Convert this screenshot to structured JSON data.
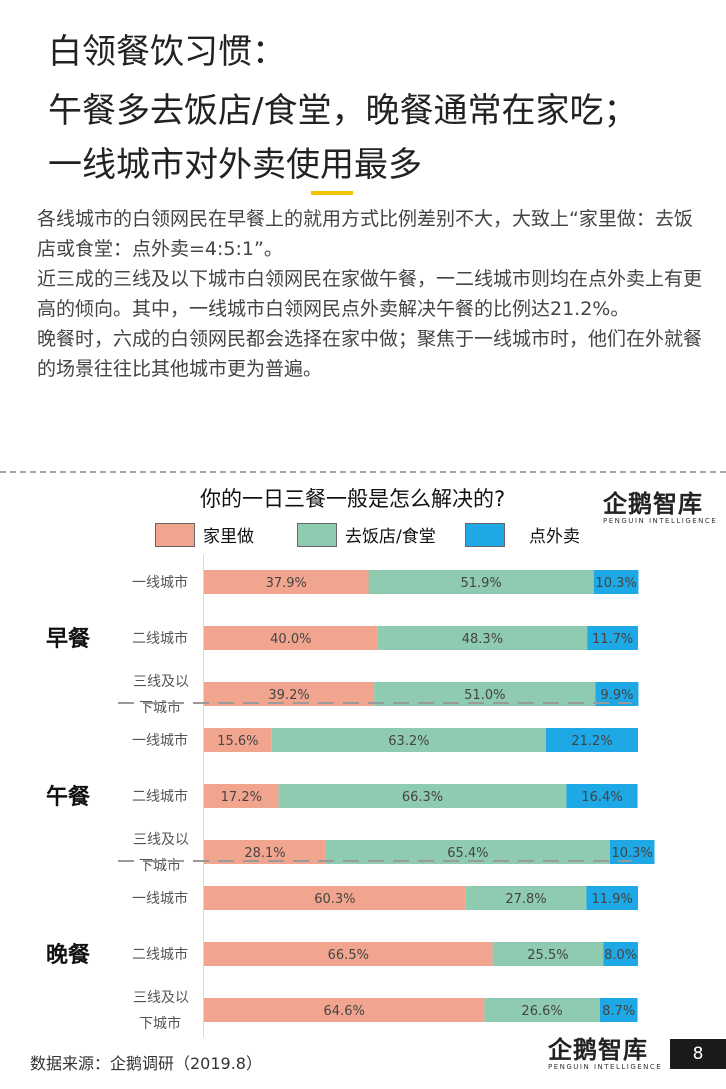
{
  "header": {
    "line1": "白领餐饮习惯：",
    "line2": "午餐多去饭店/食堂，晚餐通常在家吃；",
    "line3": "一线城市对外卖使用最多"
  },
  "body": {
    "p1": "各线城市的白领网民在早餐上的就用方式比例差别不大，大致上“家里做：去饭店或食堂：点外卖=4:5:1”。",
    "p2": "近三成的三线及以下城市白领网民在家做午餐，一二线城市则均在点外卖上有更高的倾向。其中，一线城市白领网民点外卖解决午餐的比例达21.2%。",
    "p3": "晚餐时，六成的白领网民都会选择在家中做；聚焦于一线城市时，他们在外就餐的场景往往比其他城市更为普遍。"
  },
  "logo": {
    "cn": "企鹅智库",
    "en": "PENGUIN INTELLIGENCE"
  },
  "colors": {
    "home": "#f2a58e",
    "restaurant": "#8fcbb0",
    "delivery": "#1ea8e6"
  },
  "chart_data": {
    "type": "bar",
    "orientation": "horizontal",
    "stacked": true,
    "title": "你的一日三餐一般是怎么解决的?",
    "legend_position": "top",
    "groups": [
      {
        "name": "早餐",
        "rows": [
          {
            "label": [
              "一线城市"
            ],
            "values": [
              37.9,
              51.9,
              10.3
            ]
          },
          {
            "label": [
              "二线城市"
            ],
            "values": [
              40.0,
              48.3,
              11.7
            ]
          },
          {
            "label": [
              "三线及以",
              "下城市"
            ],
            "values": [
              39.2,
              51.0,
              9.9
            ]
          }
        ]
      },
      {
        "name": "午餐",
        "rows": [
          {
            "label": [
              "一线城市"
            ],
            "values": [
              15.6,
              63.2,
              21.2
            ]
          },
          {
            "label": [
              "二线城市"
            ],
            "values": [
              17.2,
              66.3,
              16.4
            ]
          },
          {
            "label": [
              "三线及以",
              "下城市"
            ],
            "values": [
              28.1,
              65.4,
              10.3
            ]
          }
        ]
      },
      {
        "name": "晚餐",
        "rows": [
          {
            "label": [
              "一线城市"
            ],
            "values": [
              60.3,
              27.8,
              11.9
            ]
          },
          {
            "label": [
              "二线城市"
            ],
            "values": [
              66.5,
              25.5,
              8.0
            ]
          },
          {
            "label": [
              "三线及以",
              "下城市"
            ],
            "values": [
              64.6,
              26.6,
              8.7
            ]
          }
        ]
      }
    ],
    "series": [
      {
        "name": "家里做",
        "color": "#f2a58e"
      },
      {
        "name": "去饭店/食堂",
        "color": "#8fcbb0"
      },
      {
        "name": "点外卖",
        "color": "#1ea8e6"
      }
    ],
    "xlim": [
      0,
      100
    ],
    "value_format": "0.0%"
  },
  "source": "数据来源：企鹅调研（2019.8）",
  "page_number": "8"
}
